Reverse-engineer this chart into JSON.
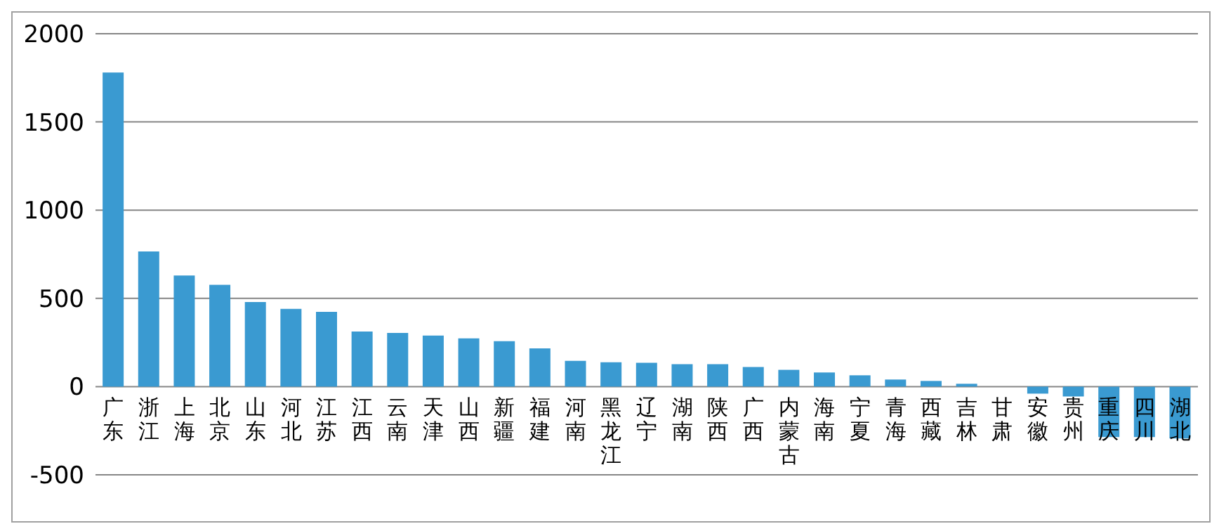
{
  "chart_data": {
    "type": "bar",
    "categories": [
      "广东",
      "浙江",
      "上海",
      "北京",
      "山东",
      "河北",
      "江苏",
      "江西",
      "云南",
      "天津",
      "山西",
      "新疆",
      "福建",
      "河南",
      "黑龙江",
      "辽宁",
      "湖南",
      "陕西",
      "广西",
      "内蒙古",
      "海南",
      "宁夏",
      "青海",
      "西藏",
      "吉林",
      "甘肃",
      "安徽",
      "贵州",
      "重庆",
      "四川",
      "湖北"
    ],
    "values": [
      1780,
      766,
      630,
      577,
      479,
      440,
      424,
      312,
      304,
      289,
      273,
      257,
      217,
      146,
      138,
      135,
      127,
      127,
      111,
      95,
      80,
      64,
      40,
      32,
      16,
      0,
      -40,
      -56,
      -286,
      -286,
      -294
    ],
    "color": "#3a9ad1",
    "ylim": [
      -500,
      2000
    ],
    "yticks": [
      -500,
      0,
      500,
      1000,
      1500,
      2000
    ],
    "grid": "y"
  }
}
